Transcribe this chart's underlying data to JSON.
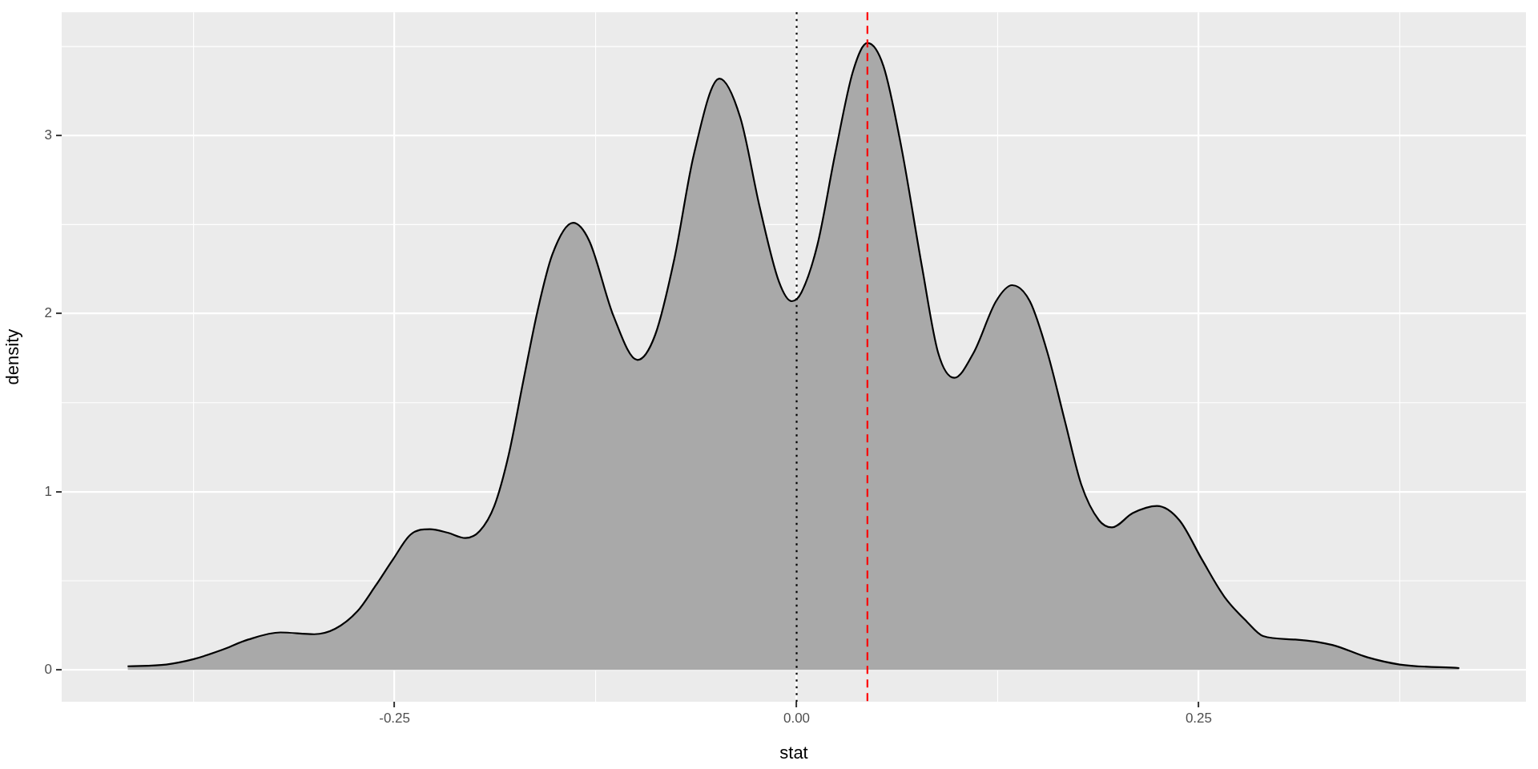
{
  "chart_data": {
    "type": "area",
    "xlabel": "stat",
    "ylabel": "density",
    "x": [
      -0.416,
      -0.392,
      -0.375,
      -0.358,
      -0.341,
      -0.321,
      -0.3,
      -0.287,
      -0.273,
      -0.262,
      -0.251,
      -0.24,
      -0.228,
      -0.217,
      -0.206,
      -0.197,
      -0.188,
      -0.179,
      -0.17,
      -0.161,
      -0.152,
      -0.139,
      -0.129,
      -0.114,
      -0.099,
      -0.088,
      -0.076,
      -0.064,
      -0.048,
      -0.035,
      -0.023,
      -0.011,
      -0.003,
      0.003,
      0.013,
      0.024,
      0.035,
      0.044,
      0.054,
      0.065,
      0.078,
      0.088,
      0.098,
      0.11,
      0.124,
      0.134,
      0.145,
      0.156,
      0.167,
      0.177,
      0.188,
      0.196,
      0.209,
      0.224,
      0.238,
      0.252,
      0.266,
      0.28,
      0.29,
      0.31,
      0.333,
      0.355,
      0.375,
      0.412
    ],
    "series": [
      {
        "color": "#a9a9a9",
        "values": [
          0.02,
          0.03,
          0.06,
          0.11,
          0.17,
          0.21,
          0.2,
          0.23,
          0.33,
          0.47,
          0.62,
          0.76,
          0.79,
          0.77,
          0.74,
          0.78,
          0.92,
          1.21,
          1.62,
          2.02,
          2.33,
          2.51,
          2.41,
          1.99,
          1.74,
          1.88,
          2.31,
          2.89,
          3.32,
          3.1,
          2.6,
          2.18,
          2.07,
          2.12,
          2.39,
          2.9,
          3.36,
          3.52,
          3.39,
          2.94,
          2.26,
          1.78,
          1.64,
          1.78,
          2.07,
          2.16,
          2.07,
          1.78,
          1.39,
          1.04,
          0.84,
          0.8,
          0.88,
          0.92,
          0.84,
          0.62,
          0.41,
          0.27,
          0.19,
          0.17,
          0.14,
          0.07,
          0.03,
          0.01
        ]
      }
    ],
    "xlim": [
      -0.457,
      0.4535
    ],
    "ylim": [
      -0.179,
      3.693
    ],
    "xticks": [
      -0.25,
      {
        "value": 0,
        "label": "0.00"
      },
      0.25
    ],
    "yticks": [
      0,
      1,
      2,
      3
    ],
    "grid": true,
    "legend": false,
    "ref_lines": [
      {
        "axis": "x",
        "value": 0,
        "color": "#000000",
        "line_style": "dotted"
      },
      {
        "axis": "x",
        "value": 0.044,
        "color": "#ff0000",
        "line_style": "dashed"
      }
    ]
  }
}
